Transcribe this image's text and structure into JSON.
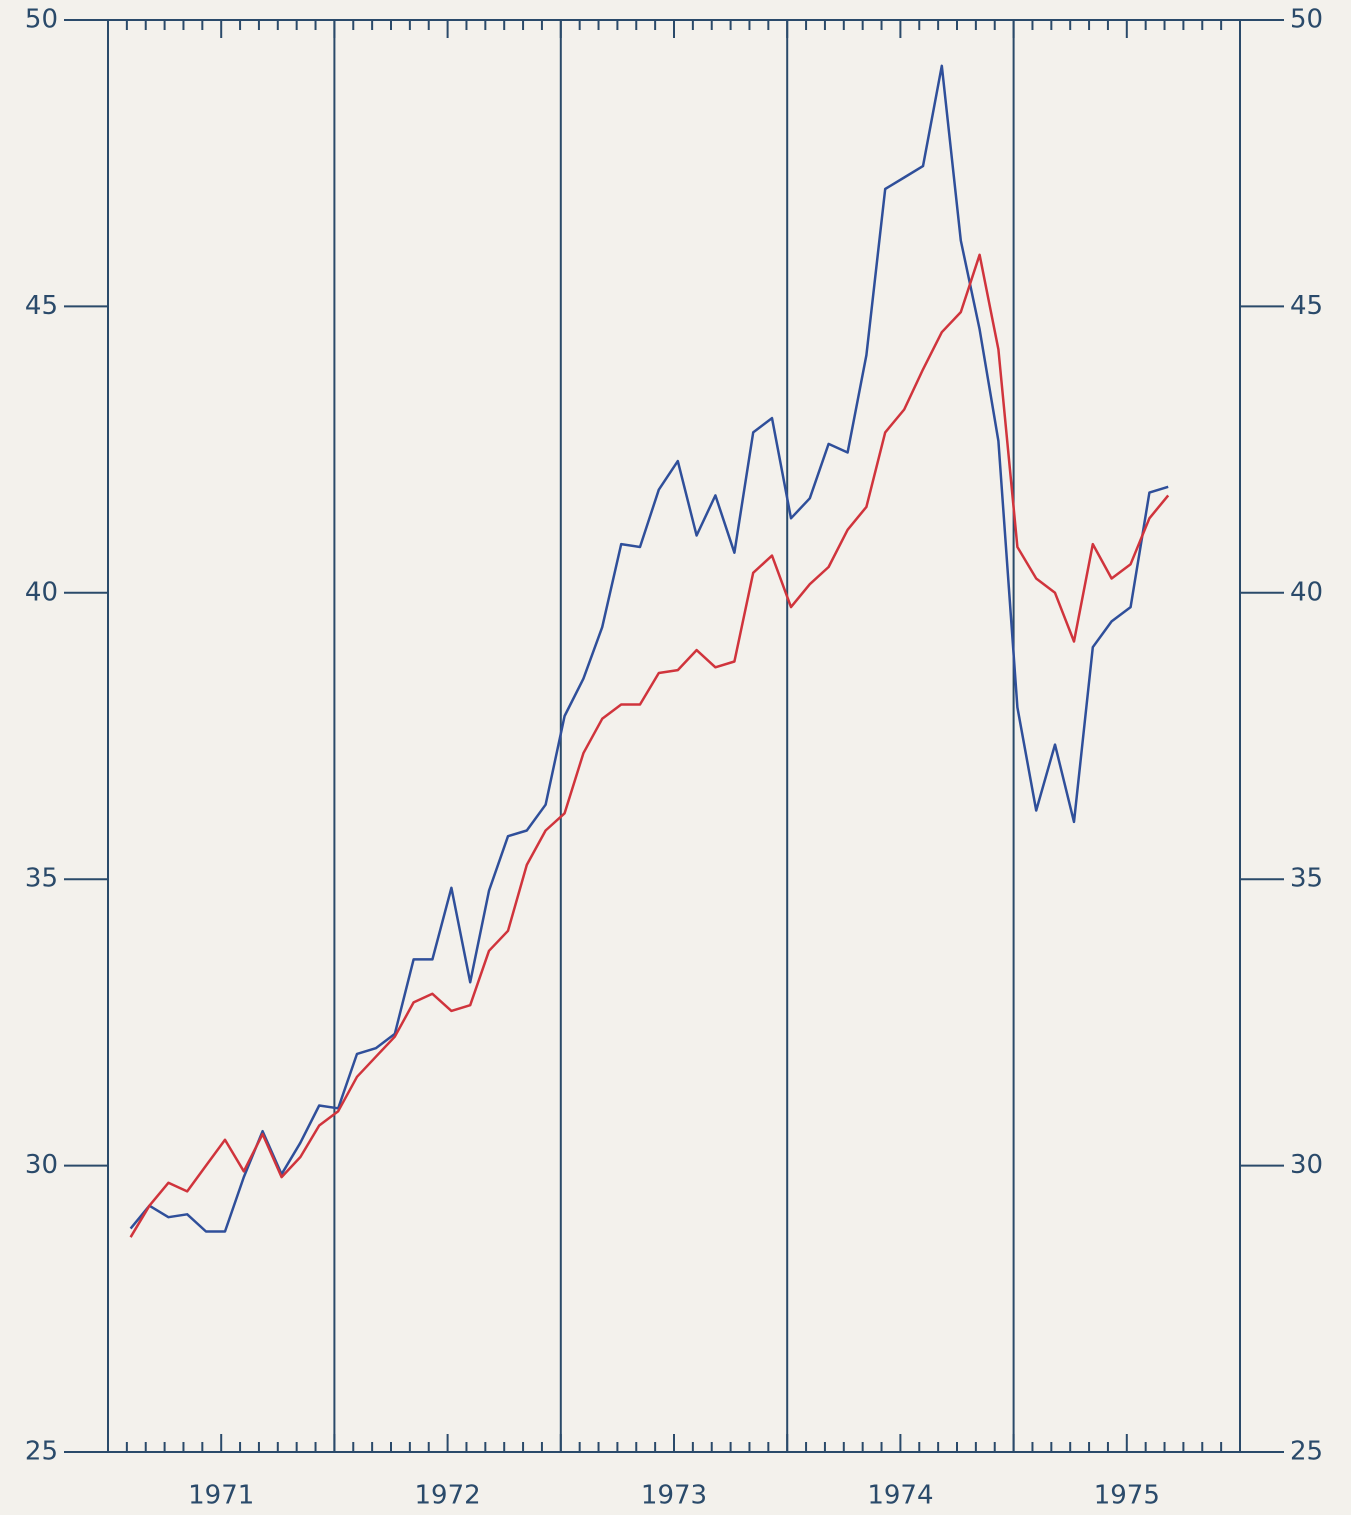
{
  "chart_data": {
    "type": "line",
    "x": [
      1971.1,
      1971.183,
      1971.267,
      1971.35,
      1971.433,
      1971.517,
      1971.6,
      1971.683,
      1971.767,
      1971.85,
      1971.933,
      1972.017,
      1972.1,
      1972.183,
      1972.267,
      1972.35,
      1972.433,
      1972.517,
      1972.6,
      1972.683,
      1972.767,
      1972.85,
      1972.933,
      1973.017,
      1973.1,
      1973.183,
      1973.267,
      1973.35,
      1973.433,
      1973.517,
      1973.6,
      1973.683,
      1973.767,
      1973.85,
      1973.933,
      1974.017,
      1974.1,
      1974.183,
      1974.267,
      1974.35,
      1974.433,
      1974.517,
      1974.6,
      1974.683,
      1974.767,
      1974.85,
      1974.933,
      1975.017,
      1975.1,
      1975.183,
      1975.267,
      1975.35,
      1975.433,
      1975.517,
      1975.6,
      1975.683
    ],
    "series": [
      {
        "color": "#2f4f9a",
        "values": [
          28.9,
          29.3,
          29.1,
          29.15,
          28.85,
          28.85,
          29.8,
          30.6,
          29.85,
          30.4,
          31.05,
          31.0,
          31.95,
          32.05,
          32.3,
          33.6,
          33.6,
          34.85,
          33.2,
          34.8,
          35.75,
          35.85,
          36.3,
          37.85,
          38.5,
          39.4,
          40.85,
          40.8,
          41.8,
          42.3,
          41.0,
          41.7,
          40.7,
          42.8,
          43.05,
          41.3,
          41.65,
          42.6,
          42.45,
          44.15,
          47.05,
          47.25,
          47.45,
          49.2,
          46.15,
          44.6,
          42.65,
          38.0,
          36.2,
          37.35,
          36.0,
          39.05,
          39.5,
          39.75,
          41.75,
          41.85
        ]
      },
      {
        "color": "#d0343c",
        "values": [
          28.75,
          29.3,
          29.7,
          29.55,
          30.0,
          30.45,
          29.9,
          30.55,
          29.8,
          30.15,
          30.7,
          30.95,
          31.55,
          31.9,
          32.25,
          32.85,
          33.0,
          32.7,
          32.8,
          33.75,
          34.1,
          35.25,
          35.85,
          36.15,
          37.2,
          37.8,
          38.05,
          38.05,
          38.6,
          38.65,
          39.0,
          38.7,
          38.8,
          40.35,
          40.65,
          39.75,
          40.15,
          40.45,
          41.1,
          41.5,
          42.8,
          43.2,
          43.9,
          44.55,
          44.9,
          45.9,
          44.25,
          40.8,
          40.25,
          40.0,
          39.15,
          40.85,
          40.25,
          40.5,
          41.3,
          41.7
        ]
      }
    ],
    "xlim": [
      1971,
      1976
    ],
    "xticks": [
      {
        "value": 1971.5,
        "label": "1971"
      },
      {
        "value": 1972.5,
        "label": "1972"
      },
      {
        "value": 1973.5,
        "label": "1973"
      },
      {
        "value": 1974.5,
        "label": "1974"
      },
      {
        "value": 1975.5,
        "label": "1975"
      }
    ],
    "xgrid": [
      1972,
      1973,
      1974,
      1975
    ],
    "ylim": [
      25,
      50
    ],
    "yticks": [
      25,
      30,
      35,
      40,
      45,
      50
    ],
    "y2lim": [
      25,
      50
    ],
    "y2ticks": [
      25,
      30,
      35,
      40,
      45,
      50
    ]
  }
}
